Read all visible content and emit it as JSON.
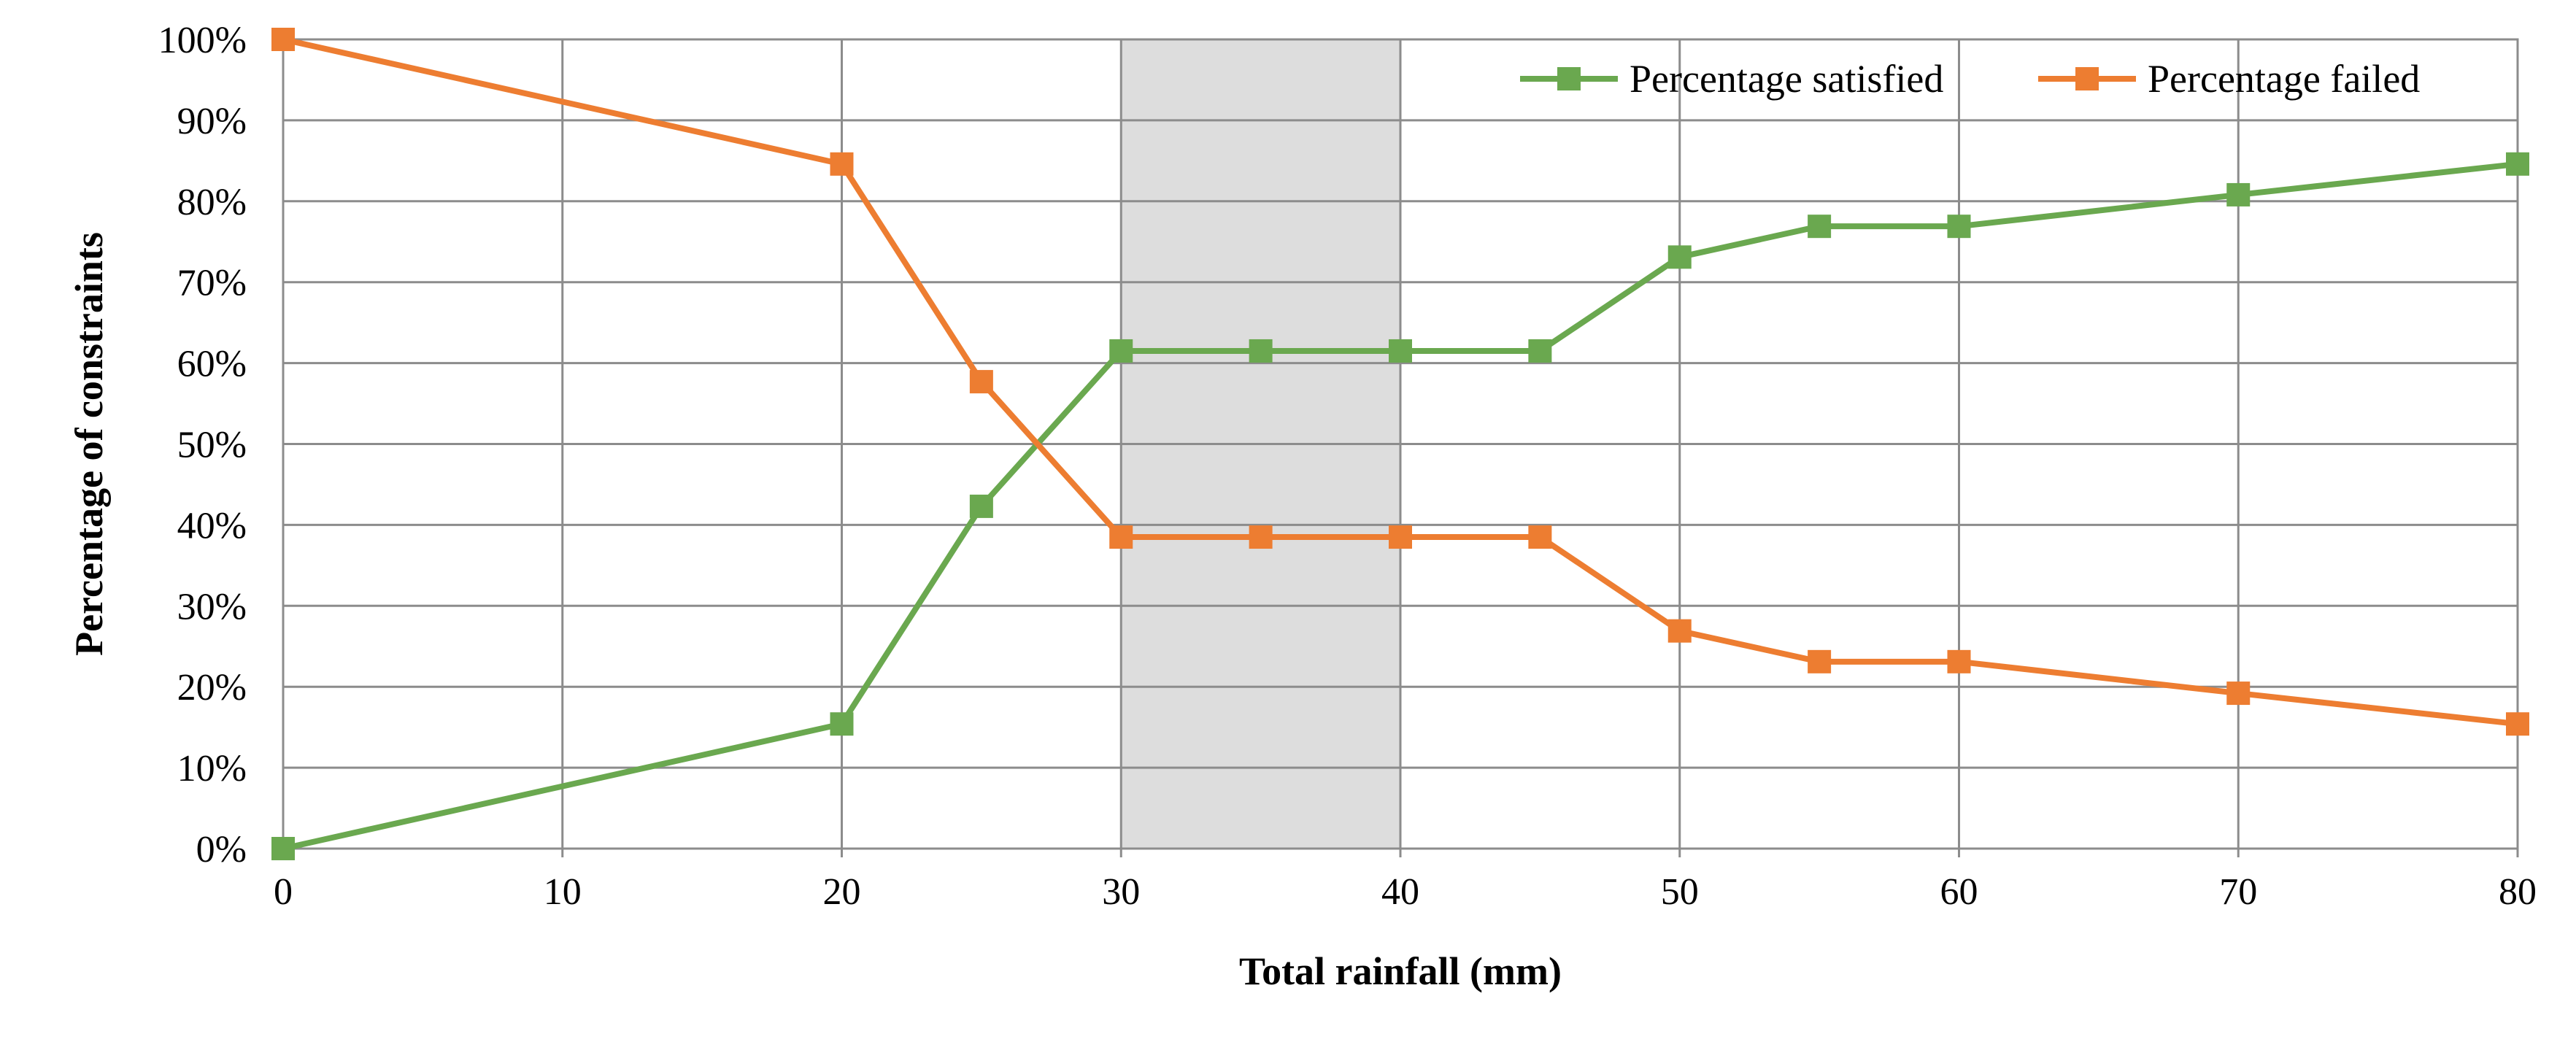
{
  "chart_data": {
    "type": "line",
    "title": "",
    "xlabel": "Total rainfall (mm)",
    "ylabel": "Percentage of constraints",
    "xlim": [
      0,
      80
    ],
    "ylim": [
      0,
      100
    ],
    "x_ticks": [
      0,
      10,
      20,
      30,
      40,
      50,
      60,
      70,
      80
    ],
    "x_tick_labels": [
      "0",
      "10",
      "20",
      "30",
      "40",
      "50",
      "60",
      "70",
      "80"
    ],
    "y_ticks": [
      0,
      10,
      20,
      30,
      40,
      50,
      60,
      70,
      80,
      90,
      100
    ],
    "y_tick_labels": [
      "0%",
      "10%",
      "20%",
      "30%",
      "40%",
      "50%",
      "60%",
      "70%",
      "80%",
      "90%",
      "100%"
    ],
    "grid": true,
    "legend_position": "top-right",
    "shaded_region": {
      "x": [
        30,
        40
      ],
      "color": "#dddddd"
    },
    "series": [
      {
        "name": "Percentage satisfied",
        "color": "#6aa84f",
        "x": [
          0,
          20,
          25,
          30,
          35,
          40,
          45,
          50,
          55,
          60,
          70,
          80
        ],
        "values": [
          0,
          15.4,
          42.3,
          61.5,
          61.5,
          61.5,
          61.5,
          73.1,
          76.9,
          76.9,
          80.8,
          84.6
        ]
      },
      {
        "name": "Percentage failed",
        "color": "#ed7d31",
        "x": [
          0,
          20,
          25,
          30,
          35,
          40,
          45,
          50,
          55,
          60,
          70,
          80
        ],
        "values": [
          100,
          84.6,
          57.7,
          38.5,
          38.5,
          38.5,
          38.5,
          26.9,
          23.1,
          23.1,
          19.2,
          15.4
        ]
      }
    ]
  }
}
